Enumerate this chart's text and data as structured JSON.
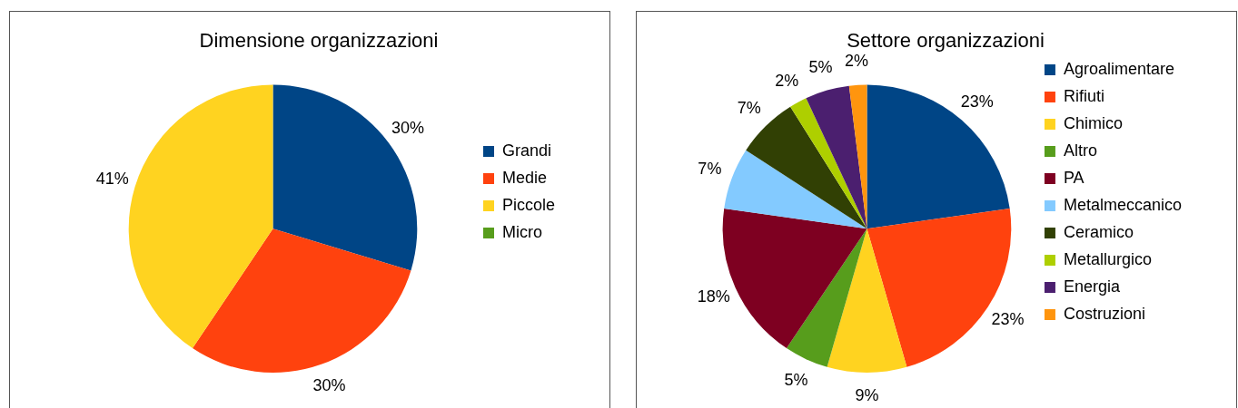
{
  "chart_data": [
    {
      "type": "pie",
      "title": "Dimensione organizzazioni",
      "categories": [
        "Grandi",
        "Medie",
        "Piccole",
        "Micro"
      ],
      "values": [
        30,
        30,
        41,
        0
      ],
      "colors": [
        "#004586",
        "#ff420e",
        "#ffd320",
        "#579d1c"
      ],
      "value_labels": [
        "30%",
        "30%",
        "41%",
        null
      ],
      "legend": "right"
    },
    {
      "type": "pie",
      "title": "Settore organizzazioni",
      "categories": [
        "Agroalimentare",
        "Rifiuti",
        "Chimico",
        "Altro",
        "PA",
        "Metalmeccanico",
        "Ceramico",
        "Metallurgico",
        "Energia",
        "Costruzioni"
      ],
      "values": [
        23,
        23,
        9,
        5,
        18,
        7,
        7,
        2,
        5,
        2
      ],
      "colors": [
        "#004586",
        "#ff420e",
        "#ffd320",
        "#579d1c",
        "#7e0021",
        "#83caff",
        "#314004",
        "#aecf00",
        "#4b1f6f",
        "#ff950e"
      ],
      "value_labels": [
        "23%",
        "23%",
        "9%",
        "5%",
        "18%",
        "7%",
        "7%",
        "2%",
        "5%",
        "2%"
      ],
      "legend": "right"
    }
  ]
}
